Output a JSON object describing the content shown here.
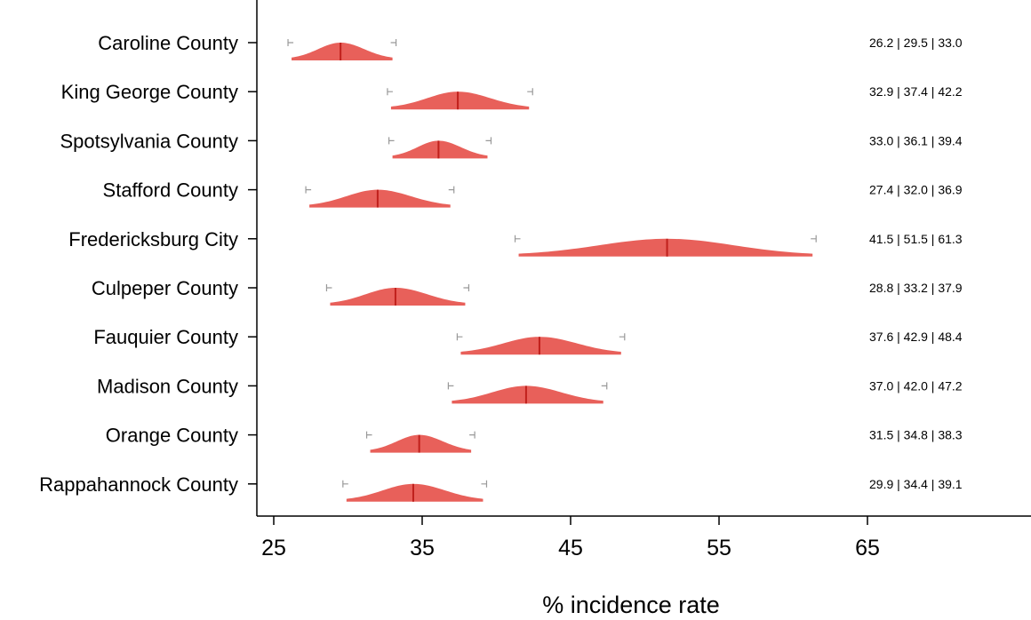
{
  "chart_data": {
    "type": "violin",
    "xlabel": "% incidence rate",
    "xlim": [
      25,
      73
    ],
    "xticks": [
      25,
      35,
      45,
      55,
      65
    ],
    "color": "#e8605a",
    "median_color": "#c0201c",
    "bracket_color": "#999999",
    "categories": [
      {
        "name": "Caroline County",
        "low": 26.2,
        "median": 29.5,
        "high": 33.0,
        "label": "26.2 | 29.5 | 33.0"
      },
      {
        "name": "King George County",
        "low": 32.9,
        "median": 37.4,
        "high": 42.2,
        "label": "32.9 | 37.4 | 42.2"
      },
      {
        "name": "Spotsylvania County",
        "low": 33.0,
        "median": 36.1,
        "high": 39.4,
        "label": "33.0 | 36.1 | 39.4"
      },
      {
        "name": "Stafford County",
        "low": 27.4,
        "median": 32.0,
        "high": 36.9,
        "label": "27.4 | 32.0 | 36.9"
      },
      {
        "name": "Fredericksburg City",
        "low": 41.5,
        "median": 51.5,
        "high": 61.3,
        "label": "41.5 | 51.5 | 61.3"
      },
      {
        "name": "Culpeper County",
        "low": 28.8,
        "median": 33.2,
        "high": 37.9,
        "label": "28.8 | 33.2 | 37.9"
      },
      {
        "name": "Fauquier County",
        "low": 37.6,
        "median": 42.9,
        "high": 48.4,
        "label": "37.6 | 42.9 | 48.4"
      },
      {
        "name": "Madison County",
        "low": 37.0,
        "median": 42.0,
        "high": 47.2,
        "label": "37.0 | 42.0 | 47.2"
      },
      {
        "name": "Orange County",
        "low": 31.5,
        "median": 34.8,
        "high": 38.3,
        "label": "31.5 | 34.8 | 38.3"
      },
      {
        "name": "Rappahannock County",
        "low": 29.9,
        "median": 34.4,
        "high": 39.1,
        "label": "29.9 | 34.4 | 39.1"
      }
    ]
  }
}
